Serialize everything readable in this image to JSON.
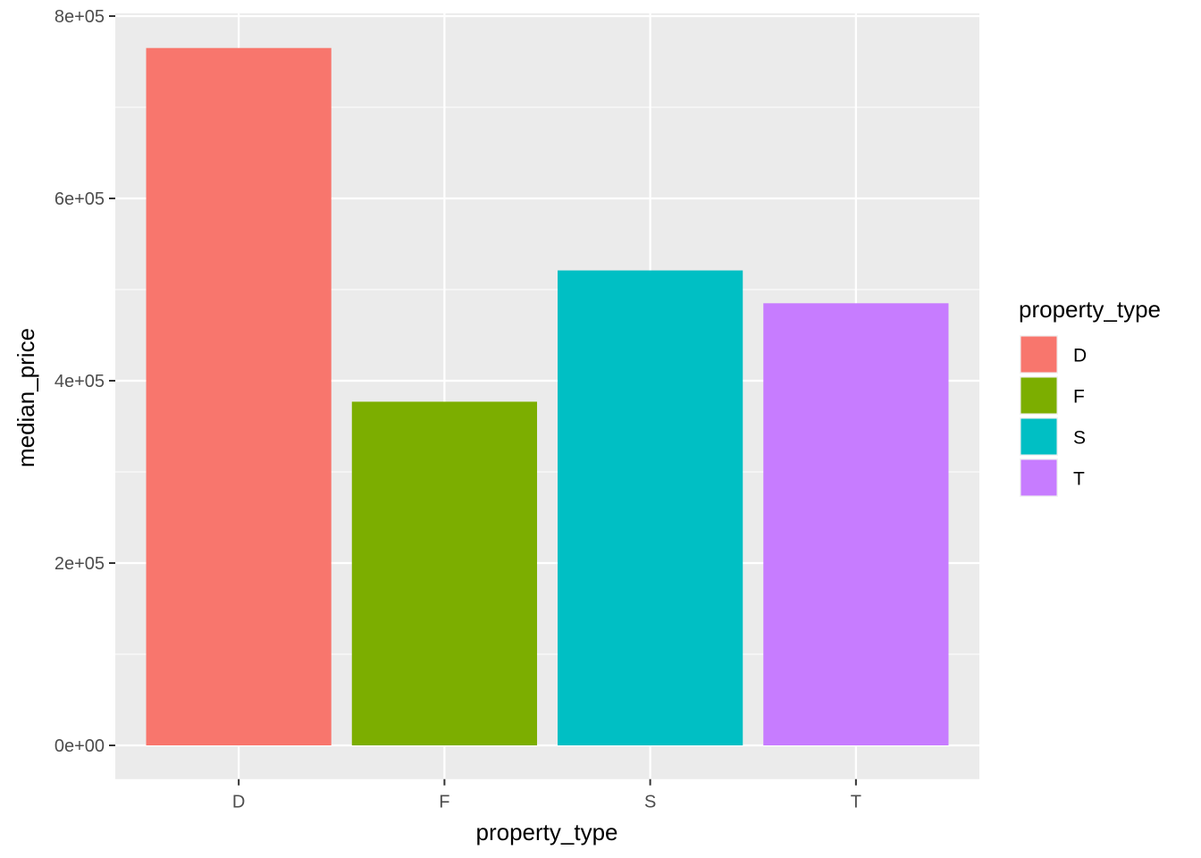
{
  "chart_data": {
    "type": "bar",
    "categories": [
      "D",
      "F",
      "S",
      "T"
    ],
    "values": [
      765000,
      377000,
      521000,
      485000
    ],
    "colors": [
      "#F8766D",
      "#7CAE00",
      "#00BFC4",
      "#C77CFF"
    ],
    "xlabel": "property_type",
    "ylabel": "median_price",
    "ylim": [
      -37000,
      803000
    ],
    "y_ticks": [
      0,
      200000,
      400000,
      600000,
      800000
    ],
    "y_tick_labels": [
      "0e+00",
      "2e+05",
      "4e+05",
      "6e+05",
      "8e+05"
    ],
    "grid": true,
    "legend": {
      "title": "property_type",
      "entries": [
        "D",
        "F",
        "S",
        "T"
      ],
      "position": "right"
    },
    "panel_background": "#EBEBEB",
    "grid_color": "#FFFFFF"
  }
}
